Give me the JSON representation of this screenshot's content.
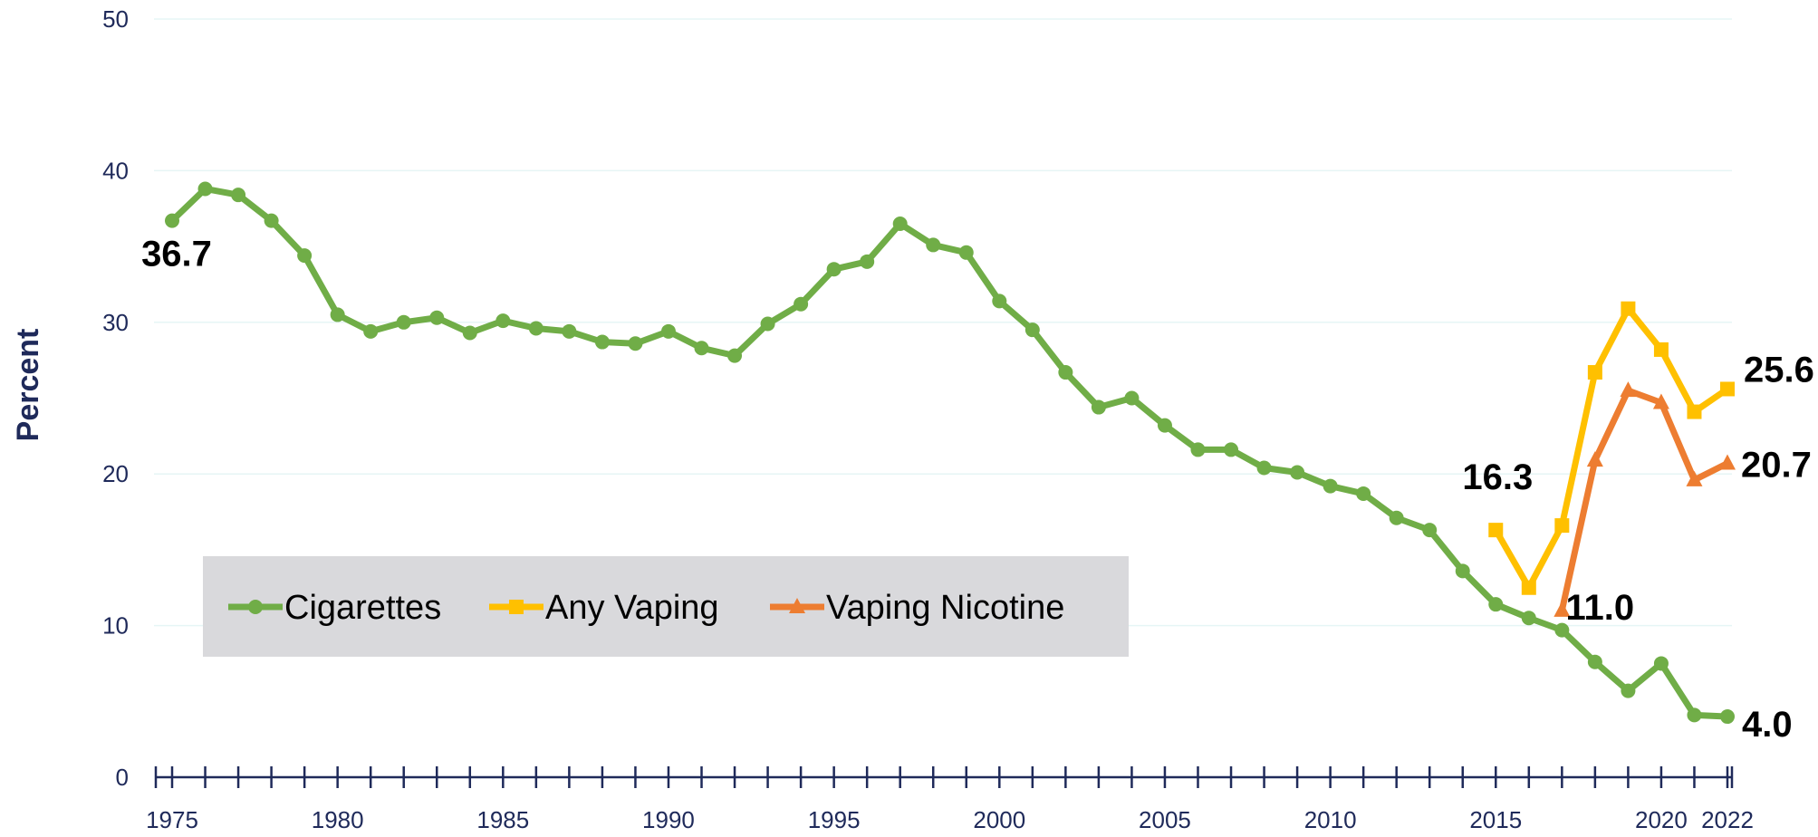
{
  "chart_data": {
    "type": "line",
    "title": "",
    "xlabel": "",
    "ylabel": "Percent",
    "xlim": [
      1975,
      2022
    ],
    "ylim": [
      0,
      50
    ],
    "y_ticks": [
      0,
      10,
      20,
      30,
      40,
      50
    ],
    "x_tick_labels": [
      1975,
      1980,
      1985,
      1990,
      1995,
      2000,
      2005,
      2010,
      2015,
      2020,
      2022
    ],
    "grid": "horizontal",
    "legend_position": "bottom-left",
    "colors": {
      "cigarettes": "#70ad47",
      "any_vaping": "#ffc000",
      "vaping_nicotine": "#ed7d31",
      "axis": "#1f2a5a",
      "gridline": "#e6f5f5",
      "legend_bg": "#d9d9dc"
    },
    "series": [
      {
        "name": "Cigarettes",
        "marker": "circle",
        "x": [
          1975,
          1976,
          1977,
          1978,
          1979,
          1980,
          1981,
          1982,
          1983,
          1984,
          1985,
          1986,
          1987,
          1988,
          1989,
          1990,
          1991,
          1992,
          1993,
          1994,
          1995,
          1996,
          1997,
          1998,
          1999,
          2000,
          2001,
          2002,
          2003,
          2004,
          2005,
          2006,
          2007,
          2008,
          2009,
          2010,
          2011,
          2012,
          2013,
          2014,
          2015,
          2016,
          2017,
          2018,
          2019,
          2020,
          2021,
          2022
        ],
        "y": [
          36.7,
          38.8,
          38.4,
          36.7,
          34.4,
          30.5,
          29.4,
          30.0,
          30.3,
          29.3,
          30.1,
          29.6,
          29.4,
          28.7,
          28.6,
          29.4,
          28.3,
          27.8,
          29.9,
          31.2,
          33.5,
          34.0,
          36.5,
          35.1,
          34.6,
          31.4,
          29.5,
          26.7,
          24.4,
          25.0,
          23.2,
          21.6,
          21.6,
          20.4,
          20.1,
          19.2,
          18.7,
          17.1,
          16.3,
          13.6,
          11.4,
          10.5,
          9.7,
          7.6,
          5.7,
          7.5,
          4.1,
          4.0
        ]
      },
      {
        "name": "Any Vaping",
        "marker": "square",
        "x": [
          2015,
          2016,
          2017,
          2018,
          2019,
          2020,
          2021,
          2022
        ],
        "y": [
          16.3,
          12.5,
          16.6,
          26.7,
          30.9,
          28.2,
          24.1,
          25.6
        ]
      },
      {
        "name": "Vaping Nicotine",
        "marker": "triangle",
        "x": [
          2017,
          2018,
          2019,
          2020,
          2021,
          2022
        ],
        "y": [
          11.0,
          20.9,
          25.5,
          24.7,
          19.6,
          20.7
        ]
      }
    ],
    "annotations": [
      {
        "text": "36.7",
        "x": 1975,
        "y": 36.7
      },
      {
        "text": "16.3",
        "x": 2015,
        "y": 16.3
      },
      {
        "text": "11.0",
        "x": 2017,
        "y": 11.0
      },
      {
        "text": "25.6",
        "x": 2022,
        "y": 25.6
      },
      {
        "text": "20.7",
        "x": 2022,
        "y": 20.7
      },
      {
        "text": "4.0",
        "x": 2022,
        "y": 4.0
      }
    ]
  }
}
